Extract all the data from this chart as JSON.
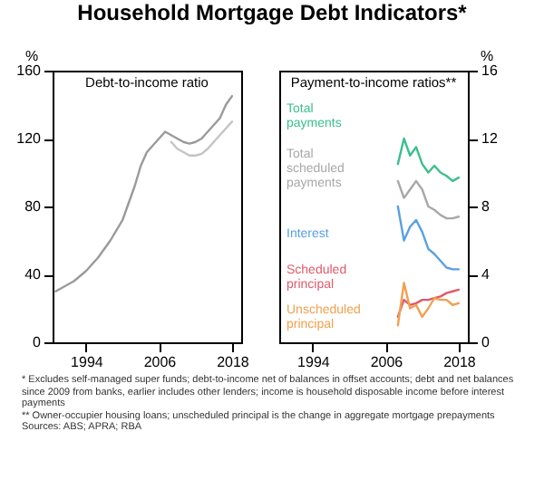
{
  "chart_data": [
    {
      "type": "line",
      "title": "Household Mortgage Debt Indicators*",
      "subtitle": "Debt-to-income ratio",
      "ylabel": "%",
      "xlim": [
        1988.5,
        2019.5
      ],
      "xticks": [
        1994,
        2006,
        2018
      ],
      "ylim": [
        0,
        160
      ],
      "yticks": [
        0,
        40,
        80,
        120,
        160
      ],
      "series": [
        {
          "color": "#9a9a9a",
          "x": [
            1989,
            1990,
            1992,
            1994,
            1996,
            1998,
            2000,
            2002,
            2003,
            2004,
            2005,
            2006,
            2007,
            2008,
            2009,
            2010,
            2011,
            2012,
            2013,
            2014,
            2015,
            2016,
            2017,
            2018
          ],
          "values": [
            30,
            32,
            36,
            42,
            50,
            60,
            72,
            92,
            104,
            112,
            116,
            120,
            124,
            122,
            120,
            118,
            117,
            118,
            120,
            124,
            128,
            132,
            140,
            145
          ]
        },
        {
          "color": "#c4c4c4",
          "x": [
            2008,
            2009,
            2010,
            2011,
            2012,
            2013,
            2014,
            2015,
            2016,
            2017,
            2018
          ],
          "values": [
            118,
            114,
            112,
            110,
            110,
            111,
            114,
            118,
            122,
            126,
            130
          ]
        }
      ],
      "annotations": [
        "* Excludes self-managed super funds; debt-to-income net of balances in offset accounts; debt and net balances since 2009 from banks, earlier includes other lenders; income is household disposable income before interest payments",
        "** Owner-occupier housing loans; unscheduled principal is the change in aggregate mortgage prepayments",
        "Sources: ABS; APRA; RBA"
      ]
    },
    {
      "type": "line",
      "title": "Payment-to-income ratios**",
      "ylabel": "%",
      "xlim": [
        1988.5,
        2019.5
      ],
      "xticks": [
        1994,
        2006,
        2018
      ],
      "ylim": [
        0,
        16
      ],
      "yticks": [
        0,
        4,
        8,
        12,
        16
      ],
      "series": [
        {
          "name": "Total payments",
          "color": "#3cbf8c",
          "x": [
            2008,
            2009,
            2010,
            2011,
            2012,
            2013,
            2014,
            2015,
            2016,
            2017,
            2018
          ],
          "values": [
            10.5,
            12,
            11,
            11.5,
            10.5,
            10,
            10.4,
            10,
            9.8,
            9.5,
            9.7
          ]
        },
        {
          "name": "Total scheduled payments",
          "color": "#a8a8a8",
          "x": [
            2008,
            2009,
            2010,
            2011,
            2012,
            2013,
            2014,
            2015,
            2016,
            2017,
            2018
          ],
          "values": [
            9.5,
            8.5,
            9,
            9.5,
            9,
            8,
            7.8,
            7.5,
            7.3,
            7.3,
            7.4
          ]
        },
        {
          "name": "Interest",
          "color": "#5aa0e0",
          "x": [
            2008,
            2009,
            2010,
            2011,
            2012,
            2013,
            2014,
            2015,
            2016,
            2017,
            2018
          ],
          "values": [
            8,
            6,
            6.8,
            7.2,
            6.5,
            5.5,
            5.2,
            4.8,
            4.4,
            4.3,
            4.3
          ]
        },
        {
          "name": "Scheduled principal",
          "color": "#e05a6a",
          "x": [
            2008,
            2009,
            2010,
            2011,
            2012,
            2013,
            2014,
            2015,
            2016,
            2017,
            2018
          ],
          "values": [
            1.5,
            2.5,
            2.2,
            2.3,
            2.5,
            2.5,
            2.6,
            2.7,
            2.9,
            3,
            3.1
          ]
        },
        {
          "name": "Unscheduled principal",
          "color": "#f0a050",
          "x": [
            2008,
            2009,
            2010,
            2011,
            2012,
            2013,
            2014,
            2015,
            2016,
            2017,
            2018
          ],
          "values": [
            1,
            3.5,
            2,
            2.2,
            1.5,
            2,
            2.6,
            2.5,
            2.5,
            2.2,
            2.3
          ]
        }
      ]
    }
  ]
}
